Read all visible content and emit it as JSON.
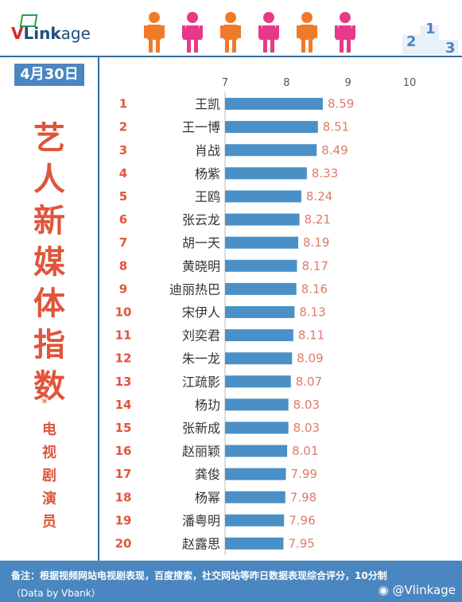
{
  "brand": {
    "logo_v": "V",
    "logo_link": "Link",
    "logo_age": "age"
  },
  "date_label": "4月30日",
  "title_chars": [
    "艺",
    "人",
    "新",
    "媒",
    "体",
    "指",
    "数"
  ],
  "asterisk": "*",
  "subtitle_chars": [
    "电",
    "视",
    "剧",
    "演",
    "员"
  ],
  "podium_numbers": [
    "2",
    "1",
    "3"
  ],
  "footer": {
    "note": "备注：根据视频网站电视剧表现，百度搜索，社交网站等昨日数据表现综合评分，10分制",
    "credit": "（Data by Vbank）",
    "weibo": "@Vlinkage"
  },
  "colors": {
    "bar": "#4a90c6",
    "accent": "#e0553b",
    "figure_orange": "#f07a2a",
    "figure_pink": "#e8388a",
    "panel_blue": "#4a86c0"
  },
  "chart_data": {
    "type": "bar",
    "orientation": "horizontal",
    "xlim": [
      7,
      10
    ],
    "xticks": [
      7,
      8,
      9,
      10
    ],
    "ranks": [
      "1",
      "2",
      "3",
      "4",
      "5",
      "6",
      "7",
      "8",
      "9",
      "10",
      "11",
      "12",
      "13",
      "14",
      "15",
      "16",
      "17",
      "18",
      "19",
      "20"
    ],
    "categories": [
      "王凯",
      "王一博",
      "肖战",
      "杨紫",
      "王鸥",
      "张云龙",
      "胡一天",
      "黄晓明",
      "迪丽热巴",
      "宋伊人",
      "刘奕君",
      "朱一龙",
      "江疏影",
      "杨玏",
      "张新成",
      "赵丽颖",
      "龚俊",
      "杨幂",
      "潘粤明",
      "赵露思"
    ],
    "values": [
      8.59,
      8.51,
      8.49,
      8.33,
      8.24,
      8.21,
      8.19,
      8.17,
      8.16,
      8.13,
      8.11,
      8.09,
      8.07,
      8.03,
      8.03,
      8.01,
      7.99,
      7.98,
      7.96,
      7.95
    ],
    "grid": false
  }
}
